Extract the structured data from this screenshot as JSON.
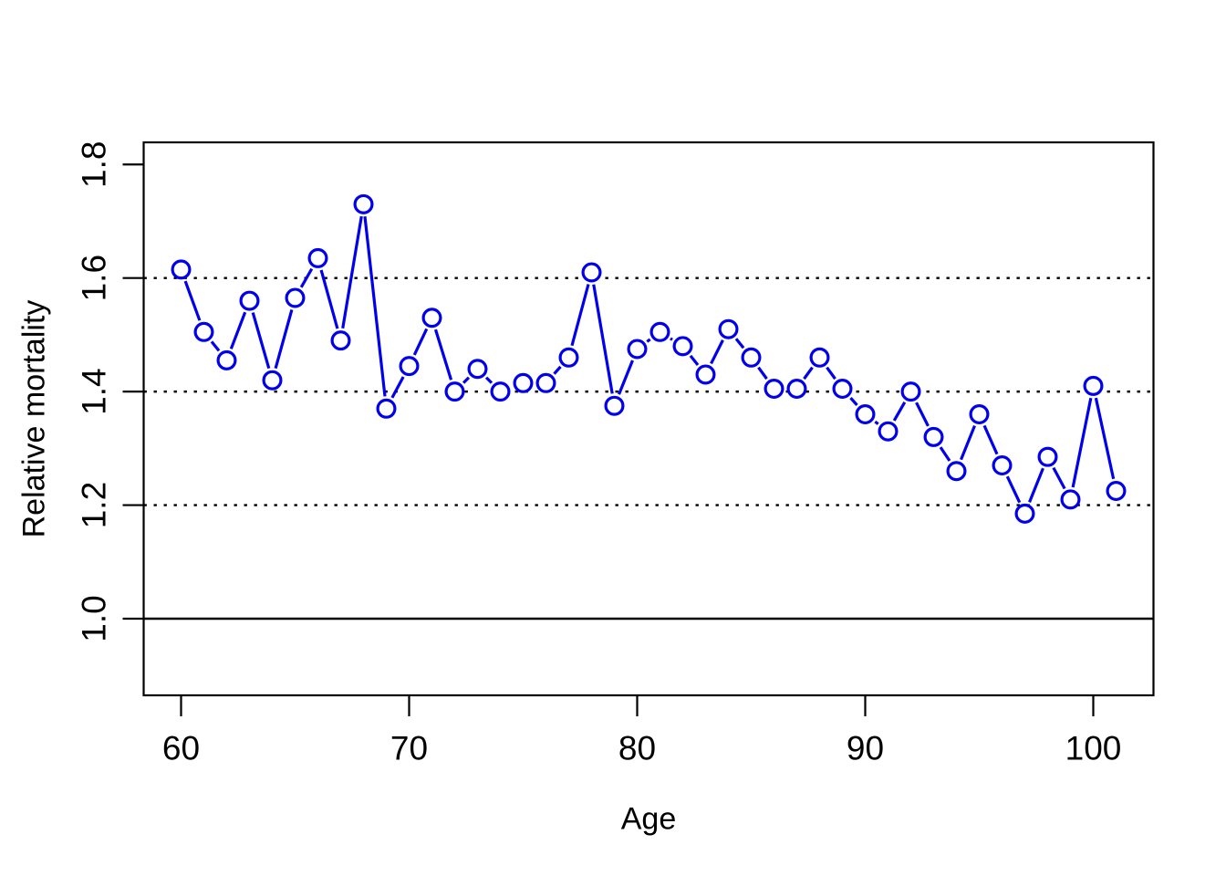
{
  "chart_data": {
    "type": "line",
    "title": "",
    "xlabel": "Age",
    "ylabel": "Relative mortality",
    "marker": "open-circle",
    "line_style": "points-connected-with-gaps",
    "series_color": "#0000EE",
    "axis_color": "#000000",
    "background_color": "#ffffff",
    "xlim": [
      58.36,
      102.64
    ],
    "ylim": [
      0.865,
      1.839
    ],
    "grid": "off",
    "legend": "none",
    "xticks": [
      {
        "value": 60,
        "label": "60"
      },
      {
        "value": 70,
        "label": "70"
      },
      {
        "value": 80,
        "label": "80"
      },
      {
        "value": 90,
        "label": "90"
      },
      {
        "value": 100,
        "label": "100"
      }
    ],
    "yticks": [
      {
        "value": 1.0,
        "label": "1.0"
      },
      {
        "value": 1.2,
        "label": "1.2"
      },
      {
        "value": 1.4,
        "label": "1.4"
      },
      {
        "value": 1.6,
        "label": "1.6"
      },
      {
        "value": 1.8,
        "label": "1.8"
      }
    ],
    "reference_lines": [
      {
        "y": 1.0,
        "style": "solid",
        "color": "#000000"
      },
      {
        "y": 1.2,
        "style": "dotted",
        "color": "#000000"
      },
      {
        "y": 1.4,
        "style": "dotted",
        "color": "#000000"
      },
      {
        "y": 1.6,
        "style": "dotted",
        "color": "#000000"
      }
    ],
    "x": [
      60,
      61,
      62,
      63,
      64,
      65,
      66,
      67,
      68,
      69,
      70,
      71,
      72,
      73,
      74,
      75,
      76,
      77,
      78,
      79,
      80,
      81,
      82,
      83,
      84,
      85,
      86,
      87,
      88,
      89,
      90,
      91,
      92,
      93,
      94,
      95,
      96,
      97,
      98,
      99,
      100,
      101
    ],
    "y": [
      1.615,
      1.505,
      1.455,
      1.56,
      1.42,
      1.565,
      1.635,
      1.49,
      1.73,
      1.37,
      1.445,
      1.53,
      1.4,
      1.44,
      1.4,
      1.415,
      1.415,
      1.46,
      1.61,
      1.375,
      1.475,
      1.505,
      1.48,
      1.43,
      1.51,
      1.46,
      1.405,
      1.405,
      1.46,
      1.405,
      1.36,
      1.33,
      1.4,
      1.32,
      1.26,
      1.36,
      1.27,
      1.185,
      1.285,
      1.21,
      1.41,
      1.225
    ]
  }
}
